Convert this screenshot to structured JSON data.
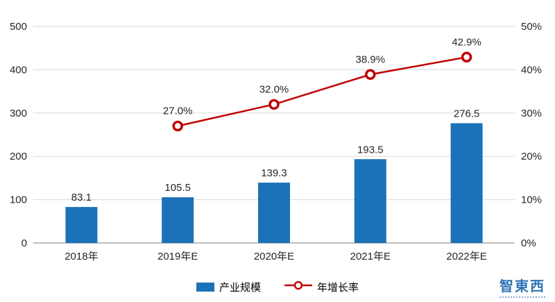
{
  "chart_data": {
    "type": "combo",
    "categories": [
      "2018年",
      "2019年E",
      "2020年E",
      "2021年E",
      "2022年E"
    ],
    "series": [
      {
        "name": "产业规模",
        "type": "bar",
        "axis": "left",
        "color": "#1b72b8",
        "values": [
          83.1,
          105.5,
          139.3,
          193.5,
          276.5
        ],
        "labels": [
          "83.1",
          "105.5",
          "139.3",
          "193.5",
          "276.5"
        ]
      },
      {
        "name": "年增长率",
        "type": "line",
        "axis": "right",
        "color": "#c00000",
        "values": [
          null,
          27.0,
          32.0,
          38.9,
          42.9
        ],
        "labels": [
          "",
          "27.0%",
          "32.0%",
          "38.9%",
          "42.9%"
        ]
      }
    ],
    "left_axis": {
      "min": 0,
      "max": 500,
      "step": 100,
      "ticks": [
        "0",
        "100",
        "200",
        "300",
        "400",
        "500"
      ]
    },
    "right_axis": {
      "min": 0,
      "max": 50,
      "step": 10,
      "ticks": [
        "0%",
        "10%",
        "20%",
        "30%",
        "40%",
        "50%"
      ]
    },
    "grid": true,
    "legend_position": "bottom",
    "title": "",
    "xlabel": "",
    "ylabel": ""
  },
  "watermark": {
    "text": "智東西"
  }
}
